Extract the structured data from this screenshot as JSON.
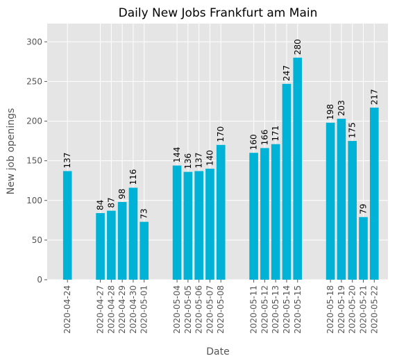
{
  "chart_data": {
    "type": "bar",
    "title": "Daily New Jobs Frankfurt am Main",
    "xlabel": "Date",
    "ylabel": "New job openings",
    "dates": [
      "2020-04-24",
      "2020-04-27",
      "2020-04-28",
      "2020-04-29",
      "2020-04-30",
      "2020-05-01",
      "2020-05-04",
      "2020-05-05",
      "2020-05-06",
      "2020-05-07",
      "2020-05-08",
      "2020-05-11",
      "2020-05-12",
      "2020-05-13",
      "2020-05-14",
      "2020-05-15",
      "2020-05-18",
      "2020-05-19",
      "2020-05-20",
      "2020-05-21",
      "2020-05-22"
    ],
    "values": [
      137,
      84,
      87,
      98,
      116,
      73,
      144,
      136,
      137,
      140,
      170,
      160,
      166,
      171,
      247,
      280,
      198,
      203,
      175,
      79,
      217
    ],
    "ylim": [
      0,
      323
    ],
    "yticks": [
      0,
      50,
      100,
      150,
      200,
      250,
      300
    ],
    "bar_color": "#00b2d6",
    "background_color": "#e5e5e5",
    "grid": true,
    "style": "ggplot"
  }
}
